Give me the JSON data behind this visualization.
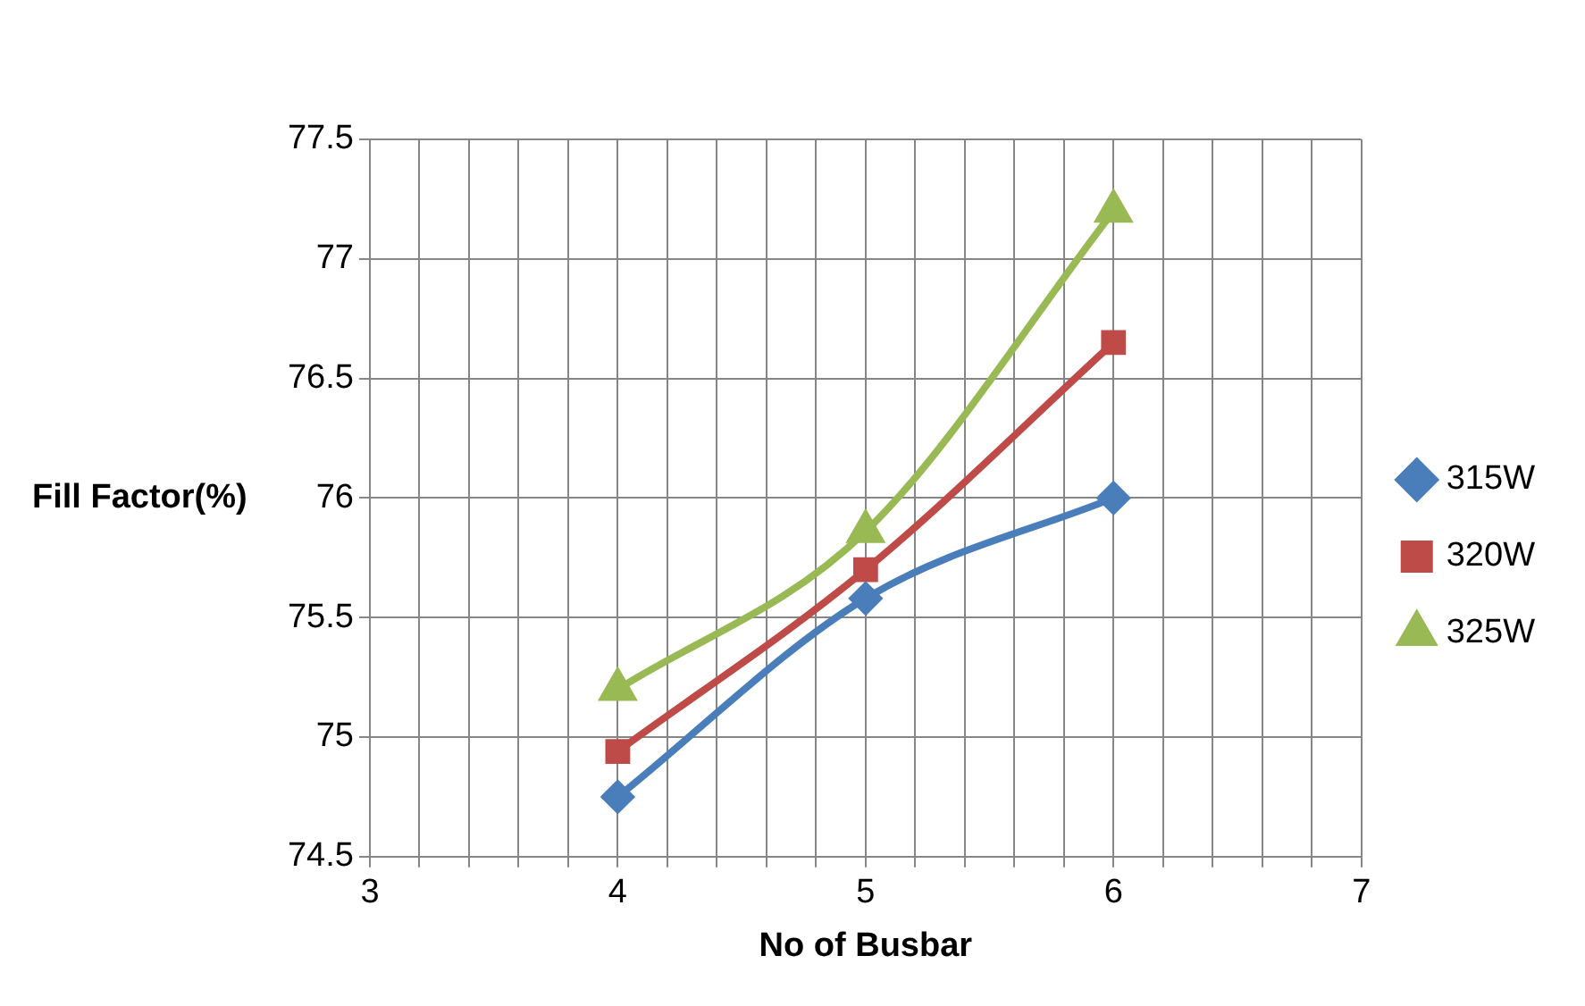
{
  "chart_data": {
    "type": "line",
    "xlabel": "No of Busbar",
    "ylabel": "Fill Factor(%)",
    "x": [
      4,
      5,
      6
    ],
    "series": [
      {
        "name": "315W",
        "color": "#4a7ebb",
        "values": [
          74.75,
          75.58,
          76.0
        ],
        "marker": "diamond"
      },
      {
        "name": "320W",
        "color": "#be4b48",
        "values": [
          74.94,
          75.7,
          76.65
        ],
        "marker": "square"
      },
      {
        "name": "325W",
        "color": "#98b954",
        "values": [
          75.2,
          75.86,
          77.2
        ],
        "marker": "triangle"
      }
    ],
    "xlim": [
      3,
      7
    ],
    "xticks": [
      3,
      {
        "value": 3.2,
        "label": null
      },
      {
        "value": 3.4,
        "label": null
      },
      {
        "value": 3.6,
        "label": null
      },
      {
        "value": 3.8,
        "label": null
      },
      4,
      {
        "value": 4.2,
        "label": null
      },
      {
        "value": 4.4,
        "label": null
      },
      {
        "value": 4.6,
        "label": null
      },
      {
        "value": 4.8,
        "label": null
      },
      5,
      {
        "value": 5.2,
        "label": null
      },
      {
        "value": 5.4,
        "label": null
      },
      {
        "value": 5.6,
        "label": null
      },
      {
        "value": 5.8,
        "label": null
      },
      6,
      {
        "value": 6.2,
        "label": null
      },
      {
        "value": 6.4,
        "label": null
      },
      {
        "value": 6.6,
        "label": null
      },
      {
        "value": 6.8,
        "label": null
      },
      7
    ],
    "ylim": [
      74.5,
      77.5
    ],
    "yticks": [
      74.5,
      75,
      75.5,
      76,
      76.5,
      77,
      77.5
    ],
    "grid": true,
    "legend": "right",
    "line_style": "solid"
  }
}
